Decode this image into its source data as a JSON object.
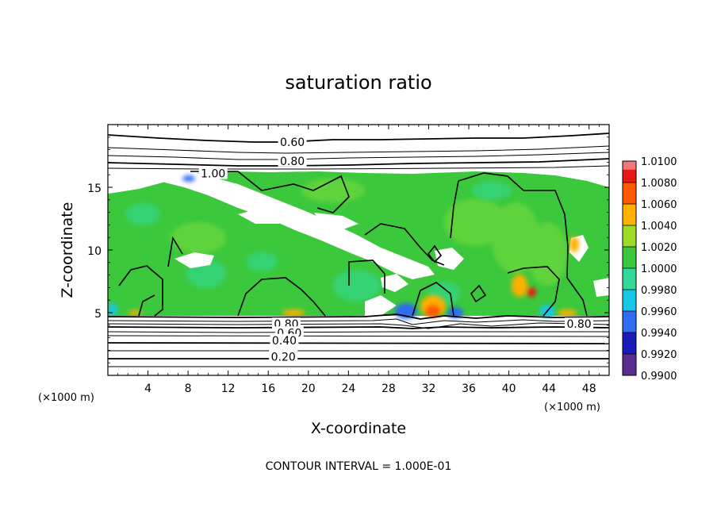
{
  "chart_data": {
    "type": "heatmap",
    "title": "saturation ratio",
    "xlabel": "X-coordinate",
    "ylabel": "Z-coordinate",
    "x_unit": "(×1000 m)",
    "z_unit": "(×1000 m)",
    "xlim": [
      0,
      50
    ],
    "ylim": [
      0,
      20
    ],
    "x_ticks": [
      4,
      8,
      12,
      16,
      20,
      24,
      28,
      32,
      36,
      40,
      44,
      48
    ],
    "y_ticks": [
      5,
      10,
      15
    ],
    "colorbar": {
      "levels": [
        "0.9900",
        "0.9920",
        "0.9940",
        "0.9960",
        "0.9980",
        "1.0000",
        "1.0020",
        "1.0040",
        "1.0060",
        "1.0080",
        "1.0100"
      ],
      "colors": [
        "#5b2c8f",
        "#1a1ab8",
        "#2f6cf0",
        "#19c6e6",
        "#33d99a",
        "#3cc83c",
        "#9cdc28",
        "#ffb000",
        "#ff5a00",
        "#e81818",
        "#f07878"
      ]
    },
    "contour_labels": [
      {
        "text": "0.60",
        "x": 18.4,
        "y": 18.6
      },
      {
        "text": "0.80",
        "x": 18.4,
        "y": 17.1
      },
      {
        "text": "1.00",
        "x": 10.5,
        "y": 16.1
      },
      {
        "text": "0.80",
        "x": 17.8,
        "y": 4.1
      },
      {
        "text": "0.60",
        "x": 18.1,
        "y": 3.4
      },
      {
        "text": "0.40",
        "x": 17.6,
        "y": 2.8
      },
      {
        "text": "0.20",
        "x": 17.5,
        "y": 1.5
      },
      {
        "text": "0.80",
        "x": 47.0,
        "y": 4.1
      }
    ],
    "contour_interval": "CONTOUR INTERVAL = 1.000E-01"
  }
}
